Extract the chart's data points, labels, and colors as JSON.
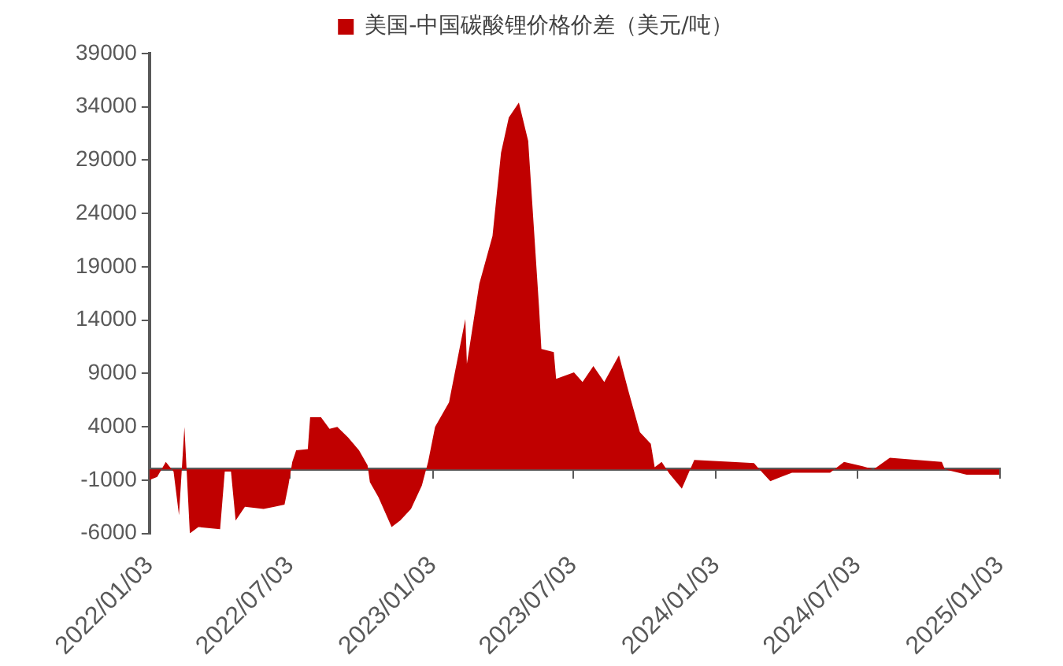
{
  "chart_data": {
    "type": "area",
    "legend": "top",
    "marker": "none",
    "x": [
      "2022-01-03",
      "2022-01-13",
      "2022-01-24",
      "2022-02-03",
      "2022-02-10",
      "2022-02-17",
      "2022-02-24",
      "2022-03-07",
      "2022-04-04",
      "2022-04-10",
      "2022-04-18",
      "2022-04-24",
      "2022-05-06",
      "2022-05-30",
      "2022-06-13",
      "2022-06-26",
      "2022-07-01",
      "2022-07-06",
      "2022-07-11",
      "2022-07-26",
      "2022-07-29",
      "2022-08-12",
      "2022-08-23",
      "2022-09-02",
      "2022-09-16",
      "2022-09-30",
      "2022-10-11",
      "2022-10-14",
      "2022-10-25",
      "2022-11-11",
      "2022-11-22",
      "2022-12-06",
      "2022-12-20",
      "2022-12-28",
      "2023-01-06",
      "2023-01-24",
      "2023-02-14",
      "2023-02-16",
      "2023-03-04",
      "2023-03-21",
      "2023-04-01",
      "2023-04-11",
      "2023-04-24",
      "2023-05-06",
      "2023-05-13",
      "2023-05-20",
      "2023-05-23",
      "2023-06-08",
      "2023-06-11",
      "2023-07-04",
      "2023-07-15",
      "2023-07-29",
      "2023-08-12",
      "2023-08-31",
      "2023-09-12",
      "2023-09-27",
      "2023-10-11",
      "2023-10-16",
      "2023-10-25",
      "2023-11-04",
      "2023-11-20",
      "2023-12-06",
      "2024-01-24",
      "2024-02-21",
      "2024-02-28",
      "2024-03-13",
      "2024-03-27",
      "2024-04-10",
      "2024-05-29",
      "2024-06-16",
      "2024-07-10",
      "2024-07-24",
      "2024-08-14",
      "2024-09-18",
      "2024-10-20",
      "2024-10-24",
      "2024-11-21",
      "2025-01-02"
    ],
    "series": [
      {
        "name": "美国-中国碳酸锂价格价差（美元/吨）",
        "color": "#c00000",
        "values": [
          -1000,
          -700,
          700,
          -200,
          -4300,
          4000,
          -6000,
          -5400,
          -5600,
          -200,
          -200,
          -4800,
          -3500,
          -3700,
          -3500,
          -3300,
          -1500,
          700,
          1800,
          1900,
          4900,
          4900,
          3800,
          4000,
          3000,
          1800,
          400,
          -1200,
          -2600,
          -5400,
          -4800,
          -3700,
          -1500,
          700,
          4000,
          6300,
          14100,
          9900,
          17400,
          21900,
          29700,
          33000,
          34400,
          30800,
          23000,
          15200,
          11300,
          11000,
          8500,
          9100,
          8200,
          9700,
          8200,
          10700,
          7400,
          3500,
          2400,
          200,
          700,
          -400,
          -1800,
          900,
          700,
          600,
          0,
          -1100,
          -700,
          -300,
          -300,
          700,
          300,
          0,
          1100,
          900,
          700,
          0,
          -500,
          -500
        ]
      }
    ],
    "xlim": [
      "2022-01-03",
      "2025-01-03"
    ],
    "xticks": [
      {
        "value": "2022-01-03",
        "label": "2022/01/03"
      },
      {
        "value": "2022-07-03",
        "label": "2022/07/03"
      },
      {
        "value": "2023-01-03",
        "label": "2023/01/03"
      },
      {
        "value": "2023-07-03",
        "label": "2023/07/03"
      },
      {
        "value": "2024-01-03",
        "label": "2024/01/03"
      },
      {
        "value": "2024-07-03",
        "label": "2024/07/03"
      },
      {
        "value": "2025-01-03",
        "label": "2025/01/03"
      }
    ],
    "ylim": [
      -6000,
      39000
    ],
    "yticks": [
      -6000,
      -1000,
      4000,
      9000,
      14000,
      19000,
      24000,
      29000,
      34000,
      39000
    ]
  }
}
